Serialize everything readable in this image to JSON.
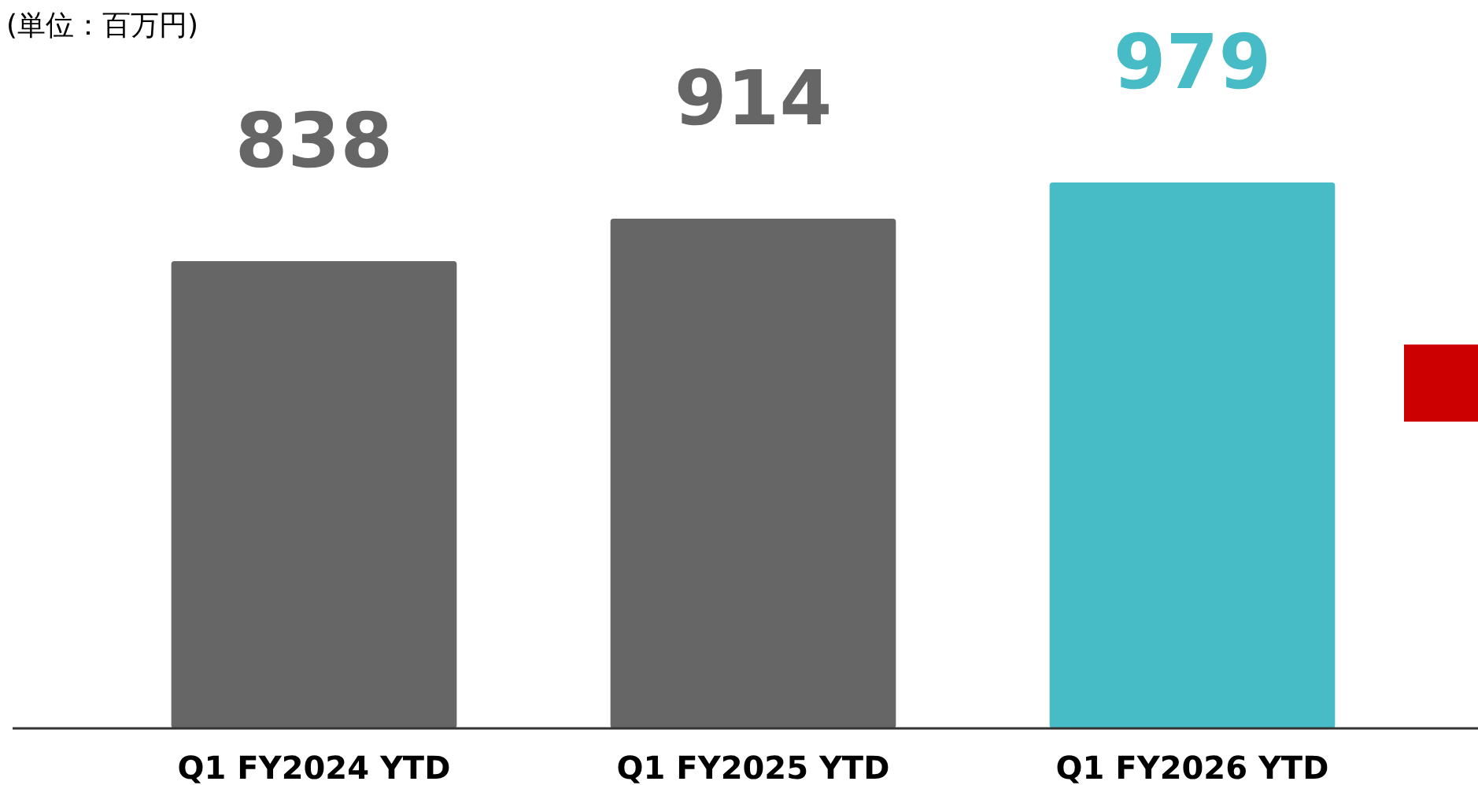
{
  "chart_data": {
    "type": "bar",
    "annotations": [
      "(単位：百万円)"
    ],
    "categories": [
      "Q1 FY2024 YTD",
      "Q1 FY2025 YTD",
      "Q1 FY2026 YTD"
    ],
    "values": [
      838,
      914,
      979
    ],
    "colors": [
      "#666666",
      "#666666",
      "#47bcc6"
    ],
    "data_labels": true
  }
}
